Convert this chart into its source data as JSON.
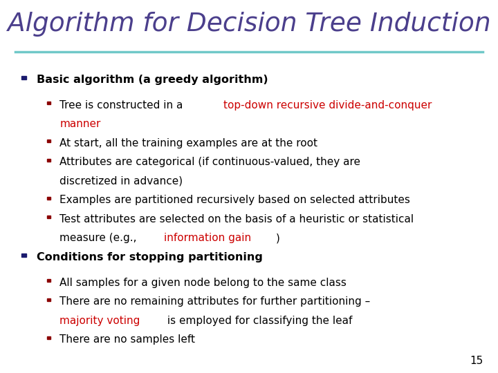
{
  "title": "Algorithm for Decision Tree Induction",
  "title_color": "#4B3F8C",
  "title_fontsize": 27,
  "background_color": "#FFFFFF",
  "separator_color": "#70C8C8",
  "bullet_color_l0": "#1A1A6E",
  "bullet_color_l1": "#8B0000",
  "text_color": "#000000",
  "red_color": "#CC0000",
  "page_number": "15",
  "content": [
    {
      "level": 0,
      "segments": [
        {
          "text": "Basic algorithm (a greedy algorithm)",
          "color": "#000000"
        }
      ]
    },
    {
      "level": 1,
      "segments": [
        {
          "text": "Tree is constructed in a ",
          "color": "#000000"
        },
        {
          "text": "top-down recursive divide-and-conquer",
          "color": "#CC0000"
        },
        {
          "text": "\nmanner",
          "color": "#CC0000"
        }
      ]
    },
    {
      "level": 1,
      "segments": [
        {
          "text": "At start, all the training examples are at the root",
          "color": "#000000"
        }
      ]
    },
    {
      "level": 1,
      "segments": [
        {
          "text": "Attributes are categorical (if continuous-valued, they are\ndiscretized in advance)",
          "color": "#000000"
        }
      ]
    },
    {
      "level": 1,
      "segments": [
        {
          "text": "Examples are partitioned recursively based on selected attributes",
          "color": "#000000"
        }
      ]
    },
    {
      "level": 1,
      "segments": [
        {
          "text": "Test attributes are selected on the basis of a heuristic or statistical\nmeasure (e.g., ",
          "color": "#000000"
        },
        {
          "text": "information gain",
          "color": "#CC0000"
        },
        {
          "text": ")",
          "color": "#000000"
        }
      ]
    },
    {
      "level": 0,
      "segments": [
        {
          "text": "Conditions for stopping partitioning",
          "color": "#000000"
        }
      ]
    },
    {
      "level": 1,
      "segments": [
        {
          "text": "All samples for a given node belong to the same class",
          "color": "#000000"
        }
      ]
    },
    {
      "level": 1,
      "segments": [
        {
          "text": "There are no remaining attributes for further partitioning –\n",
          "color": "#000000"
        },
        {
          "text": "majority voting",
          "color": "#CC0000"
        },
        {
          "text": " is employed for classifying the leaf",
          "color": "#000000"
        }
      ]
    },
    {
      "level": 1,
      "segments": [
        {
          "text": "There are no samples left",
          "color": "#000000"
        }
      ]
    }
  ]
}
